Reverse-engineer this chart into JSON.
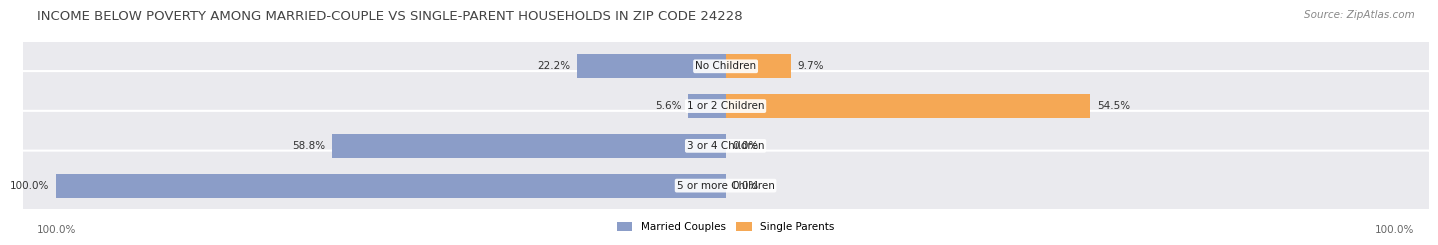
{
  "title": "INCOME BELOW POVERTY AMONG MARRIED-COUPLE VS SINGLE-PARENT HOUSEHOLDS IN ZIP CODE 24228",
  "source": "Source: ZipAtlas.com",
  "categories": [
    "No Children",
    "1 or 2 Children",
    "3 or 4 Children",
    "5 or more Children"
  ],
  "married_values": [
    22.2,
    5.6,
    58.8,
    100.0
  ],
  "single_values": [
    9.7,
    54.5,
    0.0,
    0.0
  ],
  "married_color": "#8B9DC8",
  "single_color": "#F5A855",
  "bar_bg_color": "#EAEAEE",
  "married_label": "Married Couples",
  "single_label": "Single Parents",
  "left_axis_label": "100.0%",
  "right_axis_label": "100.0%",
  "title_fontsize": 9.5,
  "source_fontsize": 7.5,
  "label_fontsize": 7.5,
  "category_fontsize": 7.5,
  "xlim": 105
}
